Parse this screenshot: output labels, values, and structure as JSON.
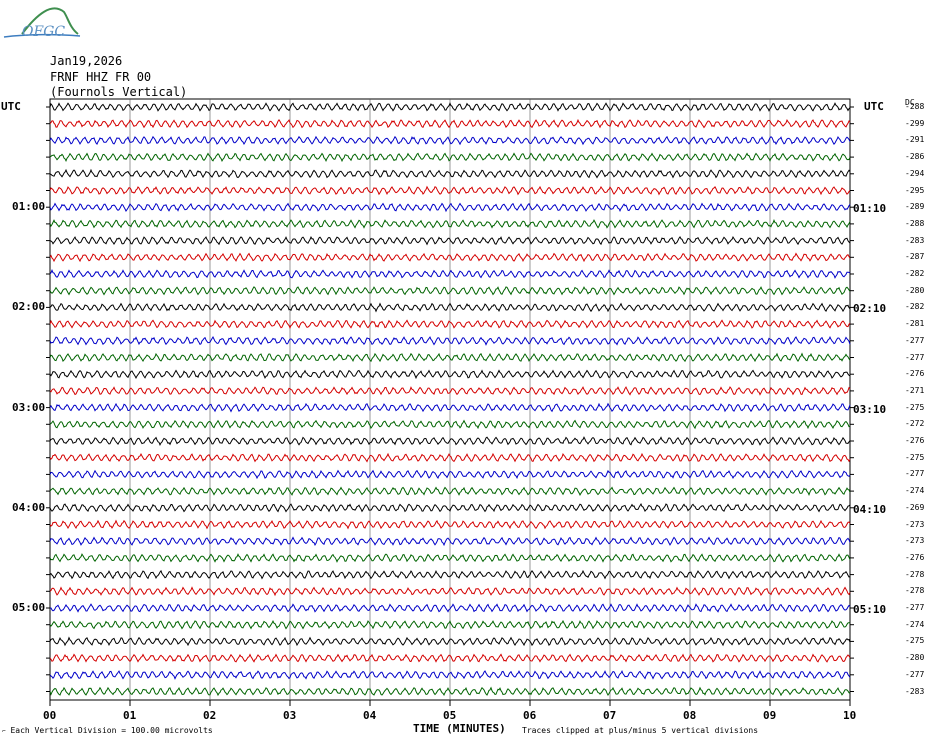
{
  "logo": {
    "text": "OFGC",
    "colors": {
      "hill": "#3f8f4f",
      "ground": "#3d7dc0"
    }
  },
  "header": {
    "date": "Jan19,2026",
    "station": "FRNF HHZ FR 00",
    "name": "(Fournols Vertical)"
  },
  "left_axis": {
    "label": "UTC",
    "ticks": [
      "01:00",
      "02:00",
      "03:00",
      "04:00",
      "05:00"
    ]
  },
  "right_axis": {
    "label": "UTC",
    "dc_label": "DC",
    "ticks": [
      "01:10",
      "02:10",
      "03:10",
      "04:10",
      "05:10"
    ]
  },
  "x_axis": {
    "title": "TIME (MINUTES)",
    "ticks": [
      "00",
      "01",
      "02",
      "03",
      "04",
      "05",
      "06",
      "07",
      "08",
      "09",
      "10"
    ]
  },
  "footer": {
    "scale_note": "Each Vertical Division =  100.00 microvolts",
    "clip_note": "Traces clipped at plus/minus 5 vertical divisions"
  },
  "chart_data": {
    "type": "line",
    "trace_colors": [
      "#000000",
      "#d40000",
      "#0000c8",
      "#006400"
    ],
    "dc_offsets": [
      -288,
      -299,
      -291,
      -286,
      -294,
      -295,
      -289,
      -288,
      -283,
      -287,
      -282,
      -280,
      -282,
      -281,
      -277,
      -277,
      -276,
      -271,
      -275,
      -272,
      -276,
      -275,
      -277,
      -274,
      -269,
      -273,
      -273,
      -276,
      -278,
      -278,
      -277,
      -274,
      -275,
      -280,
      -277,
      -283
    ],
    "xlim": [
      0,
      10
    ],
    "xlabel": "TIME (MINUTES)"
  }
}
